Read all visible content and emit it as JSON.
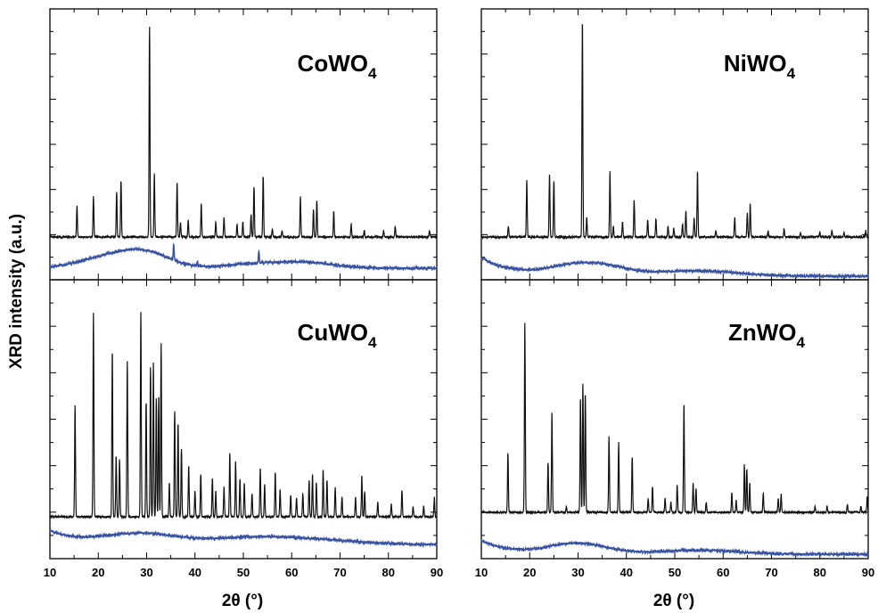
{
  "figure": {
    "ylabel": "XRD intensity (a.u.)",
    "xlabel": "2θ (°)"
  },
  "chart_data": [
    {
      "type": "line",
      "panel": "top-left",
      "label_main": "CoWO",
      "label_sub": "4",
      "xlim": [
        10,
        90
      ],
      "x_ticks": [
        10,
        20,
        30,
        40,
        50,
        60,
        70,
        80,
        90
      ],
      "series": [
        {
          "color": "#111111",
          "baseline": 0.0,
          "peaks": [
            [
              15.6,
              0.15
            ],
            [
              19.0,
              0.19
            ],
            [
              23.8,
              0.21
            ],
            [
              24.7,
              0.27
            ],
            [
              30.6,
              1.0
            ],
            [
              31.6,
              0.3
            ],
            [
              36.3,
              0.26
            ],
            [
              37.0,
              0.07
            ],
            [
              38.6,
              0.08
            ],
            [
              41.3,
              0.16
            ],
            [
              44.3,
              0.07
            ],
            [
              46.0,
              0.09
            ],
            [
              48.7,
              0.06
            ],
            [
              49.9,
              0.07
            ],
            [
              51.6,
              0.11
            ],
            [
              52.2,
              0.24
            ],
            [
              54.1,
              0.29
            ],
            [
              56.0,
              0.04
            ],
            [
              58.0,
              0.03
            ],
            [
              61.8,
              0.19
            ],
            [
              64.5,
              0.13
            ],
            [
              65.2,
              0.17
            ],
            [
              68.7,
              0.12
            ],
            [
              72.3,
              0.06
            ],
            [
              75.0,
              0.03
            ],
            [
              79.0,
              0.03
            ],
            [
              81.4,
              0.05
            ],
            [
              88.5,
              0.03
            ]
          ]
        },
        {
          "color": "#3953a4",
          "baseline": 0.0,
          "humps": [
            [
              22,
              0.04,
              6
            ],
            [
              30,
              0.05,
              5
            ],
            [
              52,
              0.015,
              6
            ],
            [
              63,
              0.02,
              6
            ]
          ],
          "peaks": [
            [
              35.6,
              0.06
            ],
            [
              53.2,
              0.045
            ],
            [
              40.5,
              0.015
            ]
          ]
        }
      ]
    },
    {
      "type": "line",
      "panel": "top-right",
      "label_main": "NiWO",
      "label_sub": "4",
      "xlim": [
        10,
        90
      ],
      "x_ticks": [
        10,
        20,
        30,
        40,
        50,
        60,
        70,
        80,
        90
      ],
      "series": [
        {
          "color": "#111111",
          "baseline": 0.0,
          "peaks": [
            [
              15.6,
              0.05
            ],
            [
              19.4,
              0.26
            ],
            [
              24.1,
              0.29
            ],
            [
              25.0,
              0.26
            ],
            [
              30.9,
              1.0
            ],
            [
              31.8,
              0.09
            ],
            [
              36.6,
              0.3
            ],
            [
              37.3,
              0.05
            ],
            [
              39.2,
              0.07
            ],
            [
              41.6,
              0.17
            ],
            [
              44.4,
              0.08
            ],
            [
              46.1,
              0.08
            ],
            [
              48.6,
              0.05
            ],
            [
              49.8,
              0.04
            ],
            [
              51.6,
              0.06
            ],
            [
              52.3,
              0.12
            ],
            [
              54.0,
              0.09
            ],
            [
              54.7,
              0.3
            ],
            [
              58.5,
              0.03
            ],
            [
              62.4,
              0.09
            ],
            [
              65.0,
              0.11
            ],
            [
              65.6,
              0.15
            ],
            [
              69.3,
              0.03
            ],
            [
              72.6,
              0.04
            ],
            [
              76.0,
              0.02
            ],
            [
              80.0,
              0.02
            ],
            [
              82.5,
              0.03
            ],
            [
              85.0,
              0.02
            ],
            [
              89.5,
              0.03
            ]
          ]
        },
        {
          "color": "#3953a4",
          "baseline": 0.0,
          "start": 0.07,
          "humps": [
            [
              32,
              0.05,
              7
            ],
            [
              55,
              0.02,
              8
            ]
          ],
          "peaks": []
        }
      ]
    },
    {
      "type": "line",
      "panel": "bottom-left",
      "label_main": "CuWO",
      "label_sub": "4",
      "xlim": [
        10,
        90
      ],
      "x_ticks": [
        10,
        20,
        30,
        40,
        50,
        60,
        70,
        80,
        90
      ],
      "series": [
        {
          "color": "#111111",
          "baseline": 0.0,
          "peaks": [
            [
              15.2,
              0.52
            ],
            [
              19.0,
              0.95
            ],
            [
              22.9,
              0.78
            ],
            [
              23.7,
              0.29
            ],
            [
              24.4,
              0.27
            ],
            [
              26.0,
              0.73
            ],
            [
              28.8,
              0.96
            ],
            [
              29.9,
              0.54
            ],
            [
              30.8,
              0.7
            ],
            [
              31.4,
              0.72
            ],
            [
              32.0,
              0.55
            ],
            [
              32.5,
              0.57
            ],
            [
              33.0,
              0.81
            ],
            [
              34.7,
              0.16
            ],
            [
              35.8,
              0.49
            ],
            [
              36.5,
              0.44
            ],
            [
              37.2,
              0.32
            ],
            [
              38.7,
              0.24
            ],
            [
              40.0,
              0.12
            ],
            [
              41.2,
              0.2
            ],
            [
              43.6,
              0.18
            ],
            [
              44.3,
              0.12
            ],
            [
              46.0,
              0.14
            ],
            [
              47.2,
              0.3
            ],
            [
              48.4,
              0.26
            ],
            [
              49.3,
              0.18
            ],
            [
              50.2,
              0.16
            ],
            [
              51.8,
              0.11
            ],
            [
              53.5,
              0.23
            ],
            [
              54.4,
              0.15
            ],
            [
              56.6,
              0.21
            ],
            [
              57.6,
              0.13
            ],
            [
              59.8,
              0.1
            ],
            [
              61.0,
              0.09
            ],
            [
              62.3,
              0.11
            ],
            [
              63.6,
              0.17
            ],
            [
              64.3,
              0.2
            ],
            [
              65.1,
              0.16
            ],
            [
              66.5,
              0.22
            ],
            [
              67.3,
              0.17
            ],
            [
              69.0,
              0.14
            ],
            [
              70.4,
              0.09
            ],
            [
              73.2,
              0.09
            ],
            [
              74.5,
              0.19
            ],
            [
              75.1,
              0.12
            ],
            [
              77.8,
              0.07
            ],
            [
              80.6,
              0.06
            ],
            [
              82.8,
              0.12
            ],
            [
              85.1,
              0.05
            ],
            [
              87.3,
              0.05
            ],
            [
              89.5,
              0.09
            ]
          ]
        },
        {
          "color": "#3953a4",
          "baseline": 0.0,
          "start": 0.05,
          "humps": [
            [
              29,
              0.04,
              8
            ],
            [
              52,
              0.025,
              8
            ],
            [
              66,
              0.015,
              8
            ]
          ],
          "peaks": []
        }
      ]
    },
    {
      "type": "line",
      "panel": "bottom-right",
      "label_main": "ZnWO",
      "label_sub": "4",
      "xlim": [
        10,
        90
      ],
      "x_ticks": [
        10,
        20,
        30,
        40,
        50,
        60,
        70,
        80,
        90
      ],
      "series": [
        {
          "color": "#111111",
          "baseline": 0.0,
          "peaks": [
            [
              15.5,
              0.3
            ],
            [
              19.0,
              0.95
            ],
            [
              23.8,
              0.25
            ],
            [
              24.6,
              0.5
            ],
            [
              27.6,
              0.03
            ],
            [
              30.5,
              0.58
            ],
            [
              31.0,
              0.65
            ],
            [
              31.5,
              0.6
            ],
            [
              36.4,
              0.38
            ],
            [
              38.4,
              0.35
            ],
            [
              41.2,
              0.28
            ],
            [
              44.5,
              0.07
            ],
            [
              45.4,
              0.13
            ],
            [
              48.0,
              0.07
            ],
            [
              49.2,
              0.05
            ],
            [
              50.5,
              0.14
            ],
            [
              51.9,
              0.55
            ],
            [
              53.8,
              0.15
            ],
            [
              54.4,
              0.12
            ],
            [
              56.5,
              0.05
            ],
            [
              61.8,
              0.1
            ],
            [
              62.7,
              0.06
            ],
            [
              64.4,
              0.24
            ],
            [
              64.9,
              0.22
            ],
            [
              65.5,
              0.15
            ],
            [
              68.3,
              0.1
            ],
            [
              71.4,
              0.07
            ],
            [
              72.0,
              0.09
            ],
            [
              79.0,
              0.03
            ],
            [
              81.5,
              0.03
            ],
            [
              85.7,
              0.04
            ],
            [
              88.5,
              0.03
            ],
            [
              89.8,
              0.08
            ]
          ]
        },
        {
          "color": "#3953a4",
          "baseline": 0.0,
          "start": 0.05,
          "humps": [
            [
              30,
              0.04,
              6
            ],
            [
              55,
              0.015,
              8
            ]
          ],
          "peaks": []
        }
      ]
    }
  ]
}
